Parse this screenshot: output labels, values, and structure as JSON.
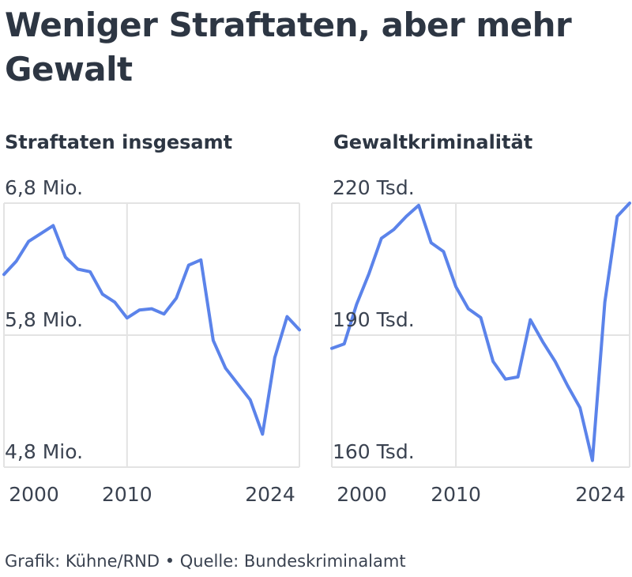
{
  "title": "Weniger Straftaten, aber mehr Gewalt",
  "footer": "Grafik: Kühne/RND • Quelle: Bundeskriminalamt",
  "colors": {
    "line": "#5b83ea",
    "grid": "#e3e3e3",
    "text": "#2d3643"
  },
  "chart_data": [
    {
      "type": "line",
      "title": "Straftaten insgesamt",
      "x": [
        2000,
        2001,
        2002,
        2003,
        2004,
        2005,
        2006,
        2007,
        2008,
        2009,
        2010,
        2011,
        2012,
        2013,
        2014,
        2015,
        2016,
        2017,
        2018,
        2019,
        2020,
        2021,
        2022,
        2023,
        2024
      ],
      "series": [
        {
          "values": [
            6.26,
            6.36,
            6.51,
            6.57,
            6.63,
            6.39,
            6.3,
            6.28,
            6.11,
            6.05,
            5.93,
            5.99,
            6.0,
            5.96,
            6.08,
            6.33,
            6.37,
            5.76,
            5.55,
            5.43,
            5.31,
            5.05,
            5.63,
            5.94,
            5.84
          ]
        }
      ],
      "xticks": [
        2000,
        2010,
        2024
      ],
      "xtick_labels": [
        "2000",
        "2010",
        "2024"
      ],
      "yticks": [
        4.8,
        5.8,
        6.8
      ],
      "ytick_labels": [
        "4,8 Mio.",
        "5,8 Mio.",
        "6,8 Mio."
      ],
      "xlim": [
        2000,
        2024
      ],
      "ylim": [
        4.8,
        6.8
      ],
      "grid": true
    },
    {
      "type": "line",
      "title": "Gewaltkriminalität",
      "x": [
        2000,
        2001,
        2002,
        2003,
        2004,
        2005,
        2006,
        2007,
        2008,
        2009,
        2010,
        2011,
        2012,
        2013,
        2014,
        2015,
        2016,
        2017,
        2018,
        2019,
        2020,
        2021,
        2022,
        2023,
        2024
      ],
      "series": [
        {
          "values": [
            187,
            188,
            197,
            204,
            212,
            214,
            217,
            219.5,
            211,
            209,
            201,
            196,
            194,
            184,
            180,
            180.5,
            193.5,
            188.5,
            184,
            178.5,
            173.5,
            161.5,
            197.5,
            217,
            220
          ]
        }
      ],
      "xticks": [
        2000,
        2010,
        2024
      ],
      "xtick_labels": [
        "2000",
        "2010",
        "2024"
      ],
      "yticks": [
        160,
        190,
        220
      ],
      "ytick_labels": [
        "160 Tsd.",
        "190 Tsd.",
        "220 Tsd."
      ],
      "xlim": [
        2000,
        2024
      ],
      "ylim": [
        160,
        220
      ],
      "grid": true
    }
  ]
}
